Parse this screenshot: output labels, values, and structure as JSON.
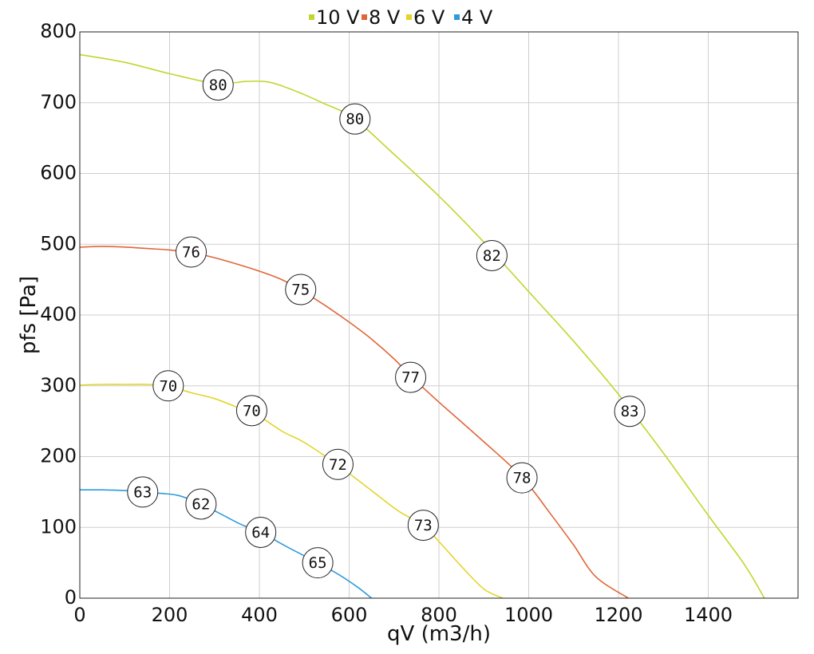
{
  "chart_data": {
    "type": "line",
    "xlabel": "qV (m3/h)",
    "ylabel": "pfs [Pa]",
    "xlim": [
      0,
      1600
    ],
    "ylim": [
      0,
      800
    ],
    "xticks": [
      0,
      200,
      400,
      600,
      800,
      1000,
      1200,
      1400
    ],
    "yticks": [
      0,
      100,
      200,
      300,
      400,
      500,
      600,
      700,
      800
    ],
    "grid": true,
    "legend_position": "top-center",
    "series": [
      {
        "name": "10 V",
        "color": "#c2d62f",
        "points": [
          [
            0,
            768
          ],
          [
            100,
            757
          ],
          [
            200,
            741
          ],
          [
            300,
            727
          ],
          [
            340,
            728
          ],
          [
            370,
            730
          ],
          [
            410,
            730
          ],
          [
            440,
            726
          ],
          [
            490,
            714
          ],
          [
            540,
            700
          ],
          [
            610,
            678
          ],
          [
            700,
            627
          ],
          [
            800,
            568
          ],
          [
            900,
            503
          ],
          [
            1000,
            433
          ],
          [
            1100,
            363
          ],
          [
            1200,
            288
          ],
          [
            1300,
            205
          ],
          [
            1400,
            117
          ],
          [
            1480,
            48
          ],
          [
            1525,
            0
          ]
        ],
        "labels": [
          {
            "x": 308,
            "y": 725,
            "text": "80"
          },
          {
            "x": 613,
            "y": 677,
            "text": "80"
          },
          {
            "x": 918,
            "y": 484,
            "text": "82"
          },
          {
            "x": 1225,
            "y": 264,
            "text": "83"
          }
        ]
      },
      {
        "name": "8 V",
        "color": "#e0663a",
        "points": [
          [
            0,
            496
          ],
          [
            50,
            497
          ],
          [
            100,
            496
          ],
          [
            150,
            494
          ],
          [
            200,
            492
          ],
          [
            250,
            488
          ],
          [
            300,
            481
          ],
          [
            350,
            472
          ],
          [
            400,
            462
          ],
          [
            450,
            450
          ],
          [
            490,
            436
          ],
          [
            550,
            412
          ],
          [
            600,
            390
          ],
          [
            650,
            366
          ],
          [
            700,
            338
          ],
          [
            740,
            312
          ],
          [
            800,
            277
          ],
          [
            900,
            221
          ],
          [
            985,
            171
          ],
          [
            1050,
            118
          ],
          [
            1100,
            75
          ],
          [
            1150,
            30
          ],
          [
            1222,
            0
          ]
        ],
        "labels": [
          {
            "x": 248,
            "y": 489,
            "text": "76"
          },
          {
            "x": 492,
            "y": 436,
            "text": "75"
          },
          {
            "x": 737,
            "y": 312,
            "text": "77"
          },
          {
            "x": 985,
            "y": 170,
            "text": "78"
          }
        ]
      },
      {
        "name": "6 V",
        "color": "#e4d42a",
        "points": [
          [
            0,
            301
          ],
          [
            50,
            302
          ],
          [
            100,
            302
          ],
          [
            150,
            302
          ],
          [
            197,
            299
          ],
          [
            250,
            290
          ],
          [
            300,
            282
          ],
          [
            350,
            270
          ],
          [
            383,
            264
          ],
          [
            450,
            236
          ],
          [
            500,
            220
          ],
          [
            575,
            188
          ],
          [
            650,
            152
          ],
          [
            710,
            123
          ],
          [
            765,
            103
          ],
          [
            800,
            80
          ],
          [
            850,
            45
          ],
          [
            900,
            13
          ],
          [
            942,
            0
          ]
        ],
        "labels": [
          {
            "x": 197,
            "y": 300,
            "text": "70"
          },
          {
            "x": 383,
            "y": 265,
            "text": "70"
          },
          {
            "x": 575,
            "y": 189,
            "text": "72"
          },
          {
            "x": 765,
            "y": 103,
            "text": "73"
          }
        ]
      },
      {
        "name": "4 V",
        "color": "#2f9bdb",
        "points": [
          [
            0,
            153
          ],
          [
            50,
            153
          ],
          [
            100,
            152
          ],
          [
            140,
            150
          ],
          [
            180,
            148
          ],
          [
            220,
            145
          ],
          [
            270,
            133
          ],
          [
            320,
            117
          ],
          [
            360,
            104
          ],
          [
            403,
            93
          ],
          [
            460,
            73
          ],
          [
            530,
            50
          ],
          [
            580,
            32
          ],
          [
            620,
            15
          ],
          [
            650,
            0
          ]
        ],
        "labels": [
          {
            "x": 140,
            "y": 150,
            "text": "63"
          },
          {
            "x": 270,
            "y": 133,
            "text": "62"
          },
          {
            "x": 403,
            "y": 93,
            "text": "64"
          },
          {
            "x": 530,
            "y": 50,
            "text": "65"
          }
        ]
      }
    ]
  }
}
